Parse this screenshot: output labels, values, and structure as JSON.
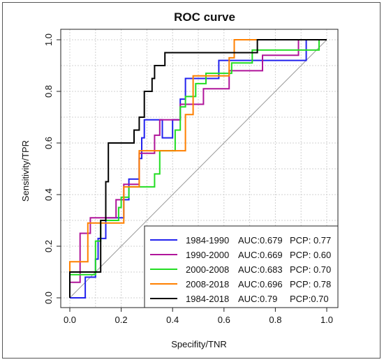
{
  "chart_data": {
    "type": "line",
    "title": "ROC curve",
    "xlabel": "Specifity/TNR",
    "ylabel": "Sensitivity/TPR",
    "xlim": [
      0,
      1
    ],
    "ylim": [
      0,
      1
    ],
    "xticks": [
      "0.0",
      "0.2",
      "0.4",
      "0.6",
      "0.8",
      "1.0"
    ],
    "yticks": [
      "0.0",
      "0.2",
      "0.4",
      "0.6",
      "0.8",
      "1.0"
    ],
    "grid": true,
    "legend_position": "bottom-right",
    "series": [
      {
        "name": "1984-1990",
        "auc": "AUC:0.679",
        "pcp": "PCP: 0.77",
        "color": "#2222ee",
        "points": [
          [
            0,
            0
          ],
          [
            0.06,
            0
          ],
          [
            0.06,
            0.08
          ],
          [
            0.1,
            0.08
          ],
          [
            0.1,
            0.15
          ],
          [
            0.11,
            0.15
          ],
          [
            0.11,
            0.23
          ],
          [
            0.14,
            0.23
          ],
          [
            0.14,
            0.31
          ],
          [
            0.21,
            0.31
          ],
          [
            0.21,
            0.38
          ],
          [
            0.23,
            0.38
          ],
          [
            0.23,
            0.46
          ],
          [
            0.27,
            0.46
          ],
          [
            0.27,
            0.54
          ],
          [
            0.28,
            0.54
          ],
          [
            0.28,
            0.62
          ],
          [
            0.29,
            0.62
          ],
          [
            0.29,
            0.69
          ],
          [
            0.36,
            0.69
          ],
          [
            0.36,
            0.62
          ],
          [
            0.4,
            0.62
          ],
          [
            0.4,
            0.69
          ],
          [
            0.43,
            0.69
          ],
          [
            0.43,
            0.77
          ],
          [
            0.45,
            0.77
          ],
          [
            0.45,
            0.85
          ],
          [
            0.58,
            0.85
          ],
          [
            0.58,
            0.92
          ],
          [
            0.8,
            0.92
          ],
          [
            0.8,
            0.92
          ],
          [
            0.92,
            0.92
          ],
          [
            0.92,
            1
          ],
          [
            1,
            1
          ]
        ]
      },
      {
        "name": "1990-2000",
        "auc": "AUC:0.669",
        "pcp": "PCP: 0.60",
        "color": "#b0159a",
        "points": [
          [
            0,
            0
          ],
          [
            0,
            0.06
          ],
          [
            0.04,
            0.06
          ],
          [
            0.04,
            0.25
          ],
          [
            0.08,
            0.25
          ],
          [
            0.08,
            0.31
          ],
          [
            0.18,
            0.31
          ],
          [
            0.18,
            0.38
          ],
          [
            0.21,
            0.38
          ],
          [
            0.21,
            0.44
          ],
          [
            0.27,
            0.44
          ],
          [
            0.27,
            0.56
          ],
          [
            0.33,
            0.56
          ],
          [
            0.33,
            0.63
          ],
          [
            0.35,
            0.63
          ],
          [
            0.35,
            0.69
          ],
          [
            0.43,
            0.69
          ],
          [
            0.43,
            0.75
          ],
          [
            0.52,
            0.75
          ],
          [
            0.52,
            0.81
          ],
          [
            0.62,
            0.81
          ],
          [
            0.62,
            0.88
          ],
          [
            0.75,
            0.88
          ],
          [
            0.75,
            0.94
          ],
          [
            0.89,
            0.94
          ],
          [
            0.89,
            1
          ],
          [
            1,
            1
          ]
        ]
      },
      {
        "name": "2000-2008",
        "auc": "AUC:0.683",
        "pcp": "PCP: 0.70",
        "color": "#22dd22",
        "points": [
          [
            0,
            0
          ],
          [
            0,
            0.09
          ],
          [
            0.1,
            0.09
          ],
          [
            0.1,
            0.22
          ],
          [
            0.12,
            0.22
          ],
          [
            0.12,
            0.3
          ],
          [
            0.19,
            0.3
          ],
          [
            0.19,
            0.35
          ],
          [
            0.2,
            0.35
          ],
          [
            0.2,
            0.39
          ],
          [
            0.23,
            0.39
          ],
          [
            0.23,
            0.43
          ],
          [
            0.33,
            0.43
          ],
          [
            0.33,
            0.48
          ],
          [
            0.35,
            0.48
          ],
          [
            0.35,
            0.57
          ],
          [
            0.41,
            0.57
          ],
          [
            0.41,
            0.65
          ],
          [
            0.43,
            0.65
          ],
          [
            0.43,
            0.74
          ],
          [
            0.45,
            0.74
          ],
          [
            0.45,
            0.78
          ],
          [
            0.49,
            0.78
          ],
          [
            0.49,
            0.83
          ],
          [
            0.53,
            0.83
          ],
          [
            0.53,
            0.87
          ],
          [
            0.63,
            0.87
          ],
          [
            0.63,
            0.91
          ],
          [
            0.71,
            0.91
          ],
          [
            0.71,
            0.96
          ],
          [
            0.97,
            0.96
          ],
          [
            0.97,
            1
          ],
          [
            1,
            1
          ]
        ]
      },
      {
        "name": "2008-2018",
        "auc": "AUC:0.696",
        "pcp": "PCP: 0.78",
        "color": "#ff8000",
        "points": [
          [
            0,
            0
          ],
          [
            0,
            0.14
          ],
          [
            0.07,
            0.14
          ],
          [
            0.07,
            0.29
          ],
          [
            0.21,
            0.29
          ],
          [
            0.21,
            0.43
          ],
          [
            0.27,
            0.43
          ],
          [
            0.27,
            0.57
          ],
          [
            0.45,
            0.57
          ],
          [
            0.45,
            0.71
          ],
          [
            0.48,
            0.71
          ],
          [
            0.48,
            0.86
          ],
          [
            0.62,
            0.86
          ],
          [
            0.62,
            0.93
          ],
          [
            0.64,
            0.93
          ],
          [
            0.64,
            1
          ],
          [
            1,
            1
          ]
        ]
      },
      {
        "name": "1984-2018",
        "auc": "AUC:0.79",
        "pcp": "PCP:0.70",
        "color": "#000000",
        "points": [
          [
            0,
            0
          ],
          [
            0,
            0.1
          ],
          [
            0.12,
            0.1
          ],
          [
            0.12,
            0.3
          ],
          [
            0.14,
            0.3
          ],
          [
            0.14,
            0.45
          ],
          [
            0.15,
            0.45
          ],
          [
            0.15,
            0.6
          ],
          [
            0.25,
            0.6
          ],
          [
            0.25,
            0.65
          ],
          [
            0.27,
            0.65
          ],
          [
            0.27,
            0.7
          ],
          [
            0.29,
            0.7
          ],
          [
            0.29,
            0.8
          ],
          [
            0.32,
            0.8
          ],
          [
            0.32,
            0.85
          ],
          [
            0.33,
            0.85
          ],
          [
            0.33,
            0.9
          ],
          [
            0.37,
            0.9
          ],
          [
            0.37,
            0.95
          ],
          [
            0.73,
            0.95
          ],
          [
            0.73,
            1
          ],
          [
            1,
            1
          ]
        ]
      }
    ]
  }
}
